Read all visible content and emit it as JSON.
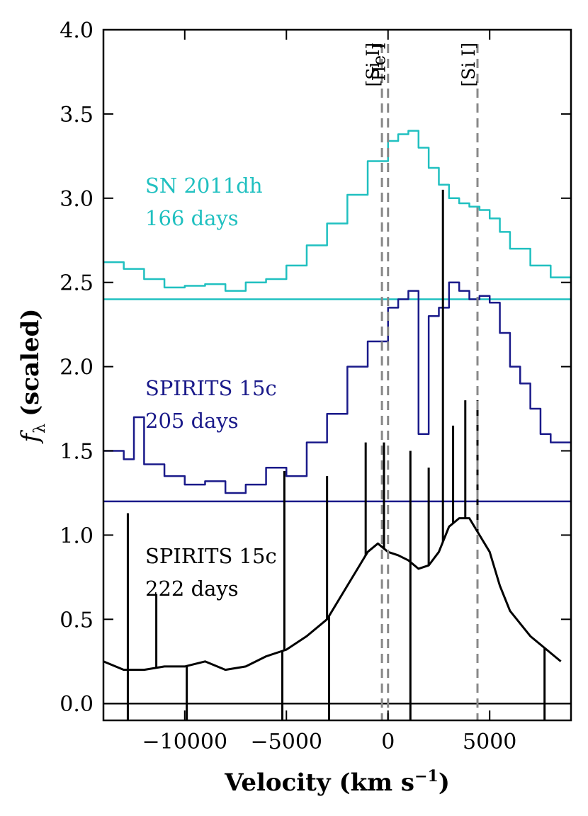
{
  "chart_data": {
    "type": "line",
    "xlabel": "Velocity (km s",
    "xlabel_sup": "−1",
    "xlabel_close": ")",
    "ylabel_symbol": "f",
    "ylabel_sub": "λ",
    "ylabel_text": "(scaled)",
    "xlim": [
      -14000,
      9000
    ],
    "ylim": [
      -0.1,
      4.0
    ],
    "xticks": [
      {
        "value": -10000,
        "label": "−10000"
      },
      {
        "value": -5000,
        "label": "−5000"
      },
      {
        "value": 0,
        "label": "0"
      },
      {
        "value": 5000,
        "label": "5000"
      }
    ],
    "yticks": [
      {
        "value": 0.0,
        "label": "0.0"
      },
      {
        "value": 0.5,
        "label": "0.5"
      },
      {
        "value": 1.0,
        "label": "1.0"
      },
      {
        "value": 1.5,
        "label": "1.5"
      },
      {
        "value": 2.0,
        "label": "2.0"
      },
      {
        "value": 2.5,
        "label": "2.5"
      },
      {
        "value": 3.0,
        "label": "3.0"
      },
      {
        "value": 3.5,
        "label": "3.5"
      },
      {
        "value": 4.0,
        "label": "4.0"
      }
    ],
    "reference_lines": [
      {
        "velocity": -300,
        "label": "[Si I]",
        "color": "#888888"
      },
      {
        "velocity": 0,
        "label": "He I",
        "color": "#888888"
      },
      {
        "velocity": 4400,
        "label": "[Si I]",
        "color": "#888888"
      }
    ],
    "series": [
      {
        "name": "SN 2011dh",
        "label_line1": "SN 2011dh",
        "label_line2": "166 days",
        "color": "#20c0c0",
        "baseline": 2.4,
        "style": "steps",
        "x": [
          -14000,
          -13000,
          -12000,
          -11000,
          -10000,
          -9000,
          -8000,
          -7000,
          -6000,
          -5000,
          -4000,
          -3000,
          -2000,
          -1000,
          0,
          500,
          1000,
          1500,
          2000,
          2500,
          3000,
          3500,
          4000,
          4500,
          5000,
          5500,
          6000,
          7000,
          8000,
          9000
        ],
        "values": [
          2.62,
          2.58,
          2.52,
          2.47,
          2.48,
          2.49,
          2.45,
          2.5,
          2.52,
          2.6,
          2.72,
          2.85,
          3.02,
          3.22,
          3.34,
          3.38,
          3.4,
          3.3,
          3.18,
          3.08,
          3.0,
          2.97,
          2.95,
          2.93,
          2.88,
          2.8,
          2.7,
          2.6,
          2.53,
          2.55
        ]
      },
      {
        "name": "SPIRITS 15c",
        "label_line1": "SPIRITS 15c",
        "label_line2": "205 days",
        "color": "#1a1a8a",
        "baseline": 1.2,
        "style": "steps",
        "x": [
          -14000,
          -13000,
          -12500,
          -12000,
          -11000,
          -10000,
          -9000,
          -8000,
          -7000,
          -6000,
          -5000,
          -4000,
          -3000,
          -2000,
          -1000,
          0,
          500,
          1000,
          1500,
          2000,
          2500,
          3000,
          3500,
          4000,
          4500,
          5000,
          5500,
          6000,
          6500,
          7000,
          7500,
          8000,
          9000
        ],
        "values": [
          1.5,
          1.45,
          1.7,
          1.42,
          1.35,
          1.3,
          1.32,
          1.25,
          1.3,
          1.4,
          1.35,
          1.55,
          1.72,
          2.0,
          2.15,
          2.35,
          2.4,
          2.45,
          1.6,
          2.3,
          2.35,
          2.5,
          2.45,
          2.4,
          2.42,
          2.38,
          2.2,
          2.0,
          1.9,
          1.75,
          1.6,
          1.55,
          1.55
        ]
      },
      {
        "name": "SPIRITS 15c",
        "label_line1": "SPIRITS 15c",
        "label_line2": "222 days",
        "color": "#000000",
        "baseline": 0.0,
        "style": "line",
        "x": [
          -14000,
          -13000,
          -12000,
          -11000,
          -10000,
          -9000,
          -8000,
          -7000,
          -6000,
          -5000,
          -4000,
          -3000,
          -2000,
          -1000,
          -500,
          0,
          500,
          1000,
          1500,
          2000,
          2500,
          3000,
          3500,
          4000,
          4500,
          5000,
          5500,
          6000,
          7000,
          8000,
          8500
        ],
        "values": [
          0.25,
          0.2,
          0.2,
          0.22,
          0.22,
          0.25,
          0.2,
          0.22,
          0.28,
          0.32,
          0.4,
          0.5,
          0.7,
          0.9,
          0.95,
          0.9,
          0.88,
          0.85,
          0.8,
          0.82,
          0.9,
          1.05,
          1.1,
          1.1,
          1.0,
          0.9,
          0.7,
          0.55,
          0.4,
          0.3,
          0.25
        ]
      }
    ],
    "spikes": [
      {
        "x": -12800,
        "value": 1.13
      },
      {
        "x": -11400,
        "value": 0.65
      },
      {
        "x": -5100,
        "value": 1.38
      },
      {
        "x": -3000,
        "value": 1.35
      },
      {
        "x": -1100,
        "value": 1.55
      },
      {
        "x": -200,
        "value": 1.55
      },
      {
        "x": 1100,
        "value": 1.5
      },
      {
        "x": 2000,
        "value": 1.4
      },
      {
        "x": 2700,
        "value": 3.05
      },
      {
        "x": 3200,
        "value": 1.65
      },
      {
        "x": 3800,
        "value": 1.8
      },
      {
        "x": 4400,
        "value": 1.8
      },
      {
        "x": -12800,
        "value": -0.1
      },
      {
        "x": -9900,
        "value": -0.1
      },
      {
        "x": -5200,
        "value": -0.1
      },
      {
        "x": -2900,
        "value": -0.1
      },
      {
        "x": 1100,
        "value": -0.1
      },
      {
        "x": 7700,
        "value": -0.1
      }
    ]
  }
}
